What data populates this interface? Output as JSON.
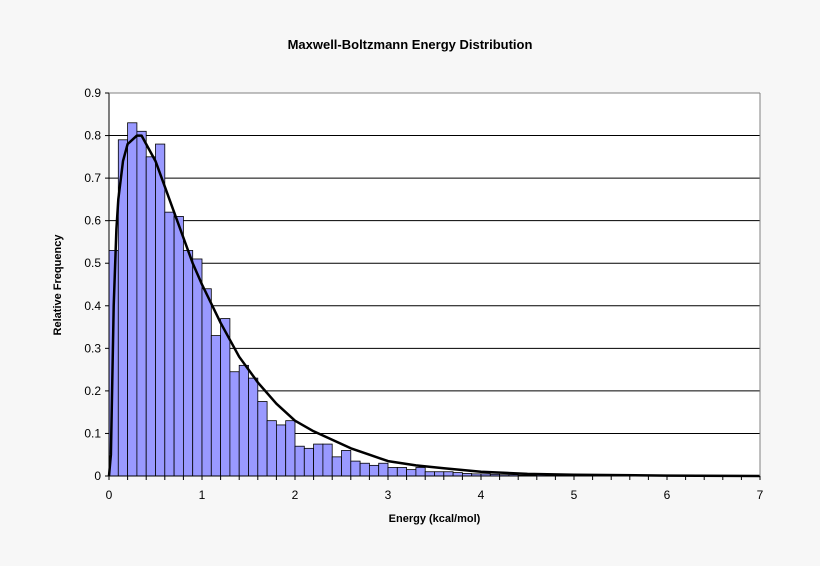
{
  "chart_data": {
    "type": "bar",
    "title": "Maxwell-Boltzmann Energy Distribution",
    "xlabel": "Energy (kcal/mol)",
    "ylabel": "Relative Frequency",
    "xlim": [
      0,
      7
    ],
    "ylim": [
      0,
      0.9
    ],
    "xticks": [
      "0",
      "1",
      "2",
      "3",
      "4",
      "5",
      "6",
      "7"
    ],
    "yticks": [
      "0",
      "0.1",
      "0.2",
      "0.3",
      "0.4",
      "0.5",
      "0.6",
      "0.7",
      "0.8",
      "0.9"
    ],
    "grid": "horizontal",
    "colors": {
      "bars": "#9999ff",
      "bar_edge": "#000000",
      "curve": "#000000",
      "background": "#f7f7f7",
      "plot_background": "#ffffff"
    },
    "bin_width": 0.1,
    "bins_start": [
      0,
      0.1,
      0.2,
      0.3,
      0.4,
      0.5,
      0.6,
      0.7,
      0.8,
      0.9,
      1.0,
      1.1,
      1.2,
      1.3,
      1.4,
      1.5,
      1.6,
      1.7,
      1.8,
      1.9,
      2.0,
      2.1,
      2.2,
      2.3,
      2.4,
      2.5,
      2.6,
      2.7,
      2.8,
      2.9,
      3.0,
      3.1,
      3.2,
      3.3,
      3.4,
      3.5,
      3.6,
      3.7,
      3.8,
      3.9,
      4.0,
      4.1,
      4.2,
      4.3,
      4.4,
      4.5,
      4.6,
      4.7,
      4.8,
      4.9,
      5.0,
      5.1,
      5.2,
      5.3,
      5.4,
      5.5,
      5.6,
      5.7,
      5.8,
      5.9,
      6.0,
      6.1,
      6.2,
      6.3,
      6.4,
      6.5,
      6.6,
      6.7,
      6.8,
      6.9
    ],
    "values": [
      0.53,
      0.79,
      0.83,
      0.81,
      0.75,
      0.78,
      0.62,
      0.61,
      0.53,
      0.51,
      0.44,
      0.33,
      0.37,
      0.245,
      0.26,
      0.23,
      0.175,
      0.13,
      0.12,
      0.13,
      0.07,
      0.065,
      0.075,
      0.075,
      0.045,
      0.06,
      0.035,
      0.03,
      0.025,
      0.03,
      0.02,
      0.02,
      0.015,
      0.02,
      0.01,
      0.01,
      0.01,
      0.008,
      0.006,
      0.005,
      0.005,
      0.004,
      0.003,
      0.003,
      0.002,
      0.002,
      0.006,
      0.002,
      0.002,
      0.001,
      0.001,
      0.001,
      0.001,
      0.001,
      0.001,
      0.001,
      0.001,
      0.001,
      0.001,
      0.001,
      0.001,
      0.001,
      0.001,
      0.001,
      0.001,
      0.001,
      0.001,
      0.001,
      0.001,
      0.001
    ],
    "curve": {
      "x": [
        0,
        0.02,
        0.05,
        0.08,
        0.1,
        0.15,
        0.2,
        0.25,
        0.3,
        0.35,
        0.4,
        0.5,
        0.6,
        0.7,
        0.8,
        0.9,
        1.0,
        1.2,
        1.4,
        1.6,
        1.8,
        2.0,
        2.2,
        2.4,
        2.6,
        2.8,
        3.0,
        3.3,
        3.6,
        4.0,
        4.5,
        5.0,
        5.5,
        6.0,
        7.0
      ],
      "y": [
        0,
        0.05,
        0.4,
        0.58,
        0.65,
        0.74,
        0.78,
        0.79,
        0.8,
        0.8,
        0.78,
        0.74,
        0.68,
        0.62,
        0.56,
        0.5,
        0.45,
        0.36,
        0.28,
        0.22,
        0.17,
        0.13,
        0.105,
        0.085,
        0.065,
        0.05,
        0.035,
        0.025,
        0.018,
        0.01,
        0.005,
        0.003,
        0.002,
        0.001,
        0.0
      ]
    }
  }
}
